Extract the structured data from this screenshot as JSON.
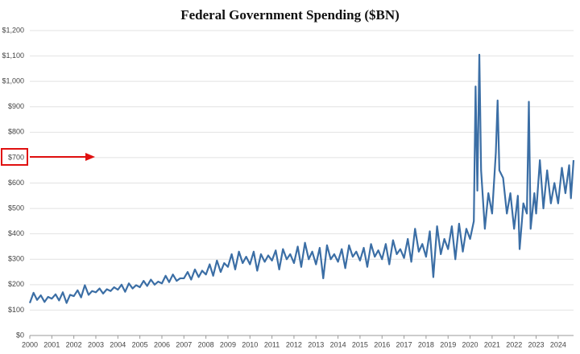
{
  "chart_data": {
    "type": "line",
    "title": "Federal Government Spending ($BN)",
    "xlim": [
      2000,
      2024.7
    ],
    "xticks": [
      2000,
      2001,
      2002,
      2003,
      2004,
      2005,
      2006,
      2007,
      2008,
      2009,
      2010,
      2011,
      2012,
      2013,
      2014,
      2015,
      2016,
      2017,
      2018,
      2019,
      2020,
      2021,
      2022,
      2023,
      2024
    ],
    "ylim": [
      0,
      1200
    ],
    "yticks": [
      {
        "value": 0,
        "label": "$0"
      },
      {
        "value": 100,
        "label": "$100"
      },
      {
        "value": 200,
        "label": "$200"
      },
      {
        "value": 300,
        "label": "$300"
      },
      {
        "value": 400,
        "label": "$400"
      },
      {
        "value": 500,
        "label": "$500"
      },
      {
        "value": 600,
        "label": "$600"
      },
      {
        "value": 700,
        "label": "$700"
      },
      {
        "value": 800,
        "label": "$800"
      },
      {
        "value": 900,
        "label": "$900"
      },
      {
        "value": 1000,
        "label": "$1,000"
      },
      {
        "value": 1100,
        "label": "$1,100"
      },
      {
        "value": 1200,
        "label": "$1,200"
      }
    ],
    "grid": true,
    "x": [
      2000,
      2000.17,
      2000.33,
      2000.5,
      2000.67,
      2000.83,
      2001,
      2001.17,
      2001.33,
      2001.5,
      2001.67,
      2001.83,
      2002,
      2002.17,
      2002.33,
      2002.5,
      2002.67,
      2002.83,
      2003,
      2003.17,
      2003.33,
      2003.5,
      2003.67,
      2003.83,
      2004,
      2004.17,
      2004.33,
      2004.5,
      2004.67,
      2004.83,
      2005,
      2005.17,
      2005.33,
      2005.5,
      2005.67,
      2005.83,
      2006,
      2006.17,
      2006.33,
      2006.5,
      2006.67,
      2006.83,
      2007,
      2007.17,
      2007.33,
      2007.5,
      2007.67,
      2007.83,
      2008,
      2008.17,
      2008.33,
      2008.5,
      2008.67,
      2008.83,
      2009,
      2009.17,
      2009.33,
      2009.5,
      2009.67,
      2009.83,
      2010,
      2010.17,
      2010.33,
      2010.5,
      2010.67,
      2010.83,
      2011,
      2011.17,
      2011.33,
      2011.5,
      2011.67,
      2011.83,
      2012,
      2012.17,
      2012.33,
      2012.5,
      2012.67,
      2012.83,
      2013,
      2013.17,
      2013.33,
      2013.5,
      2013.67,
      2013.83,
      2014,
      2014.17,
      2014.33,
      2014.5,
      2014.67,
      2014.83,
      2015,
      2015.17,
      2015.33,
      2015.5,
      2015.67,
      2015.83,
      2016,
      2016.17,
      2016.33,
      2016.5,
      2016.67,
      2016.83,
      2017,
      2017.17,
      2017.33,
      2017.5,
      2017.67,
      2017.83,
      2018,
      2018.17,
      2018.33,
      2018.5,
      2018.67,
      2018.83,
      2019,
      2019.17,
      2019.33,
      2019.5,
      2019.67,
      2019.83,
      2020,
      2020.17,
      2020.25,
      2020.33,
      2020.42,
      2020.5,
      2020.67,
      2020.83,
      2021,
      2021.17,
      2021.25,
      2021.33,
      2021.5,
      2021.67,
      2021.83,
      2022,
      2022.17,
      2022.25,
      2022.42,
      2022.58,
      2022.67,
      2022.75,
      2022.92,
      2023,
      2023.17,
      2023.33,
      2023.5,
      2023.67,
      2023.83,
      2024,
      2024.17,
      2024.33,
      2024.5,
      2024.58,
      2024.7
    ],
    "series": [
      {
        "color": "#3b6ea5",
        "values": [
          128,
          168,
          140,
          158,
          132,
          152,
          145,
          162,
          138,
          170,
          128,
          160,
          155,
          178,
          150,
          198,
          160,
          175,
          170,
          185,
          165,
          182,
          175,
          190,
          180,
          200,
          172,
          205,
          185,
          198,
          190,
          215,
          195,
          220,
          200,
          212,
          205,
          235,
          210,
          240,
          215,
          225,
          225,
          250,
          220,
          260,
          230,
          255,
          240,
          280,
          235,
          295,
          250,
          285,
          270,
          320,
          260,
          330,
          285,
          310,
          280,
          330,
          255,
          320,
          290,
          315,
          295,
          335,
          260,
          340,
          300,
          320,
          285,
          350,
          270,
          365,
          300,
          330,
          280,
          345,
          225,
          355,
          300,
          320,
          290,
          340,
          265,
          355,
          310,
          330,
          295,
          345,
          270,
          360,
          310,
          335,
          300,
          360,
          280,
          375,
          320,
          340,
          305,
          380,
          290,
          420,
          330,
          360,
          310,
          410,
          230,
          430,
          320,
          380,
          340,
          430,
          300,
          440,
          330,
          420,
          380,
          450,
          980,
          570,
          1105,
          650,
          420,
          560,
          480,
          720,
          925,
          650,
          620,
          480,
          560,
          420,
          550,
          340,
          520,
          480,
          920,
          420,
          560,
          480,
          690,
          500,
          650,
          520,
          600,
          520,
          660,
          560,
          670,
          540,
          690
        ]
      }
    ]
  }
}
